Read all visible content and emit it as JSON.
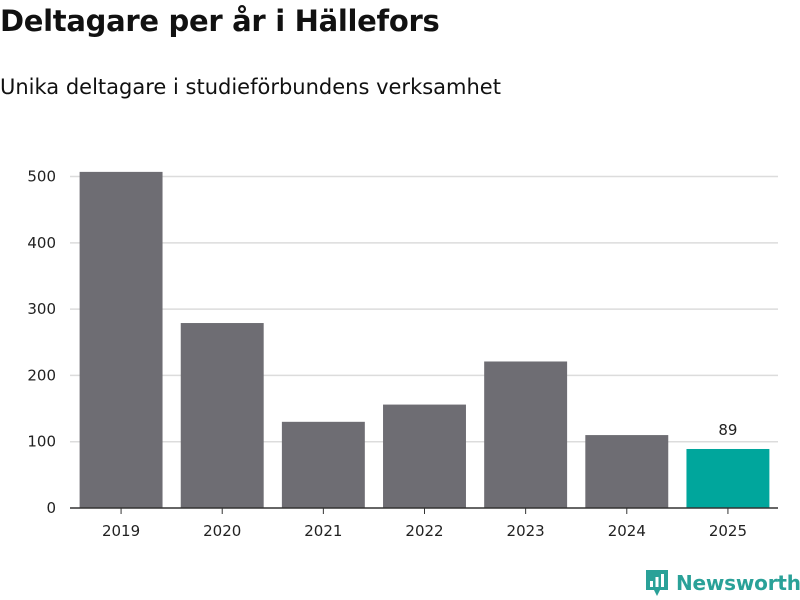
{
  "title": "Deltagare per år i Hällefors",
  "subtitle": "Unika deltagare i studieförbundens verksamhet",
  "brand": "Newsworthy",
  "colors": {
    "bar": "#6e6d73",
    "highlight": "#00a69c",
    "grid": "#dcdcdc",
    "axis": "#333333",
    "brand": "#2aa198"
  },
  "chart_data": {
    "type": "bar",
    "categories": [
      "2019",
      "2020",
      "2021",
      "2022",
      "2023",
      "2024",
      "2025"
    ],
    "values": [
      507,
      279,
      130,
      156,
      221,
      110,
      89
    ],
    "highlight_index": 6,
    "data_labels": [
      {
        "index": 6,
        "text": "89"
      }
    ],
    "ylim": [
      0,
      540
    ],
    "yticks": [
      0,
      100,
      200,
      300,
      400,
      500
    ],
    "grid": true
  }
}
